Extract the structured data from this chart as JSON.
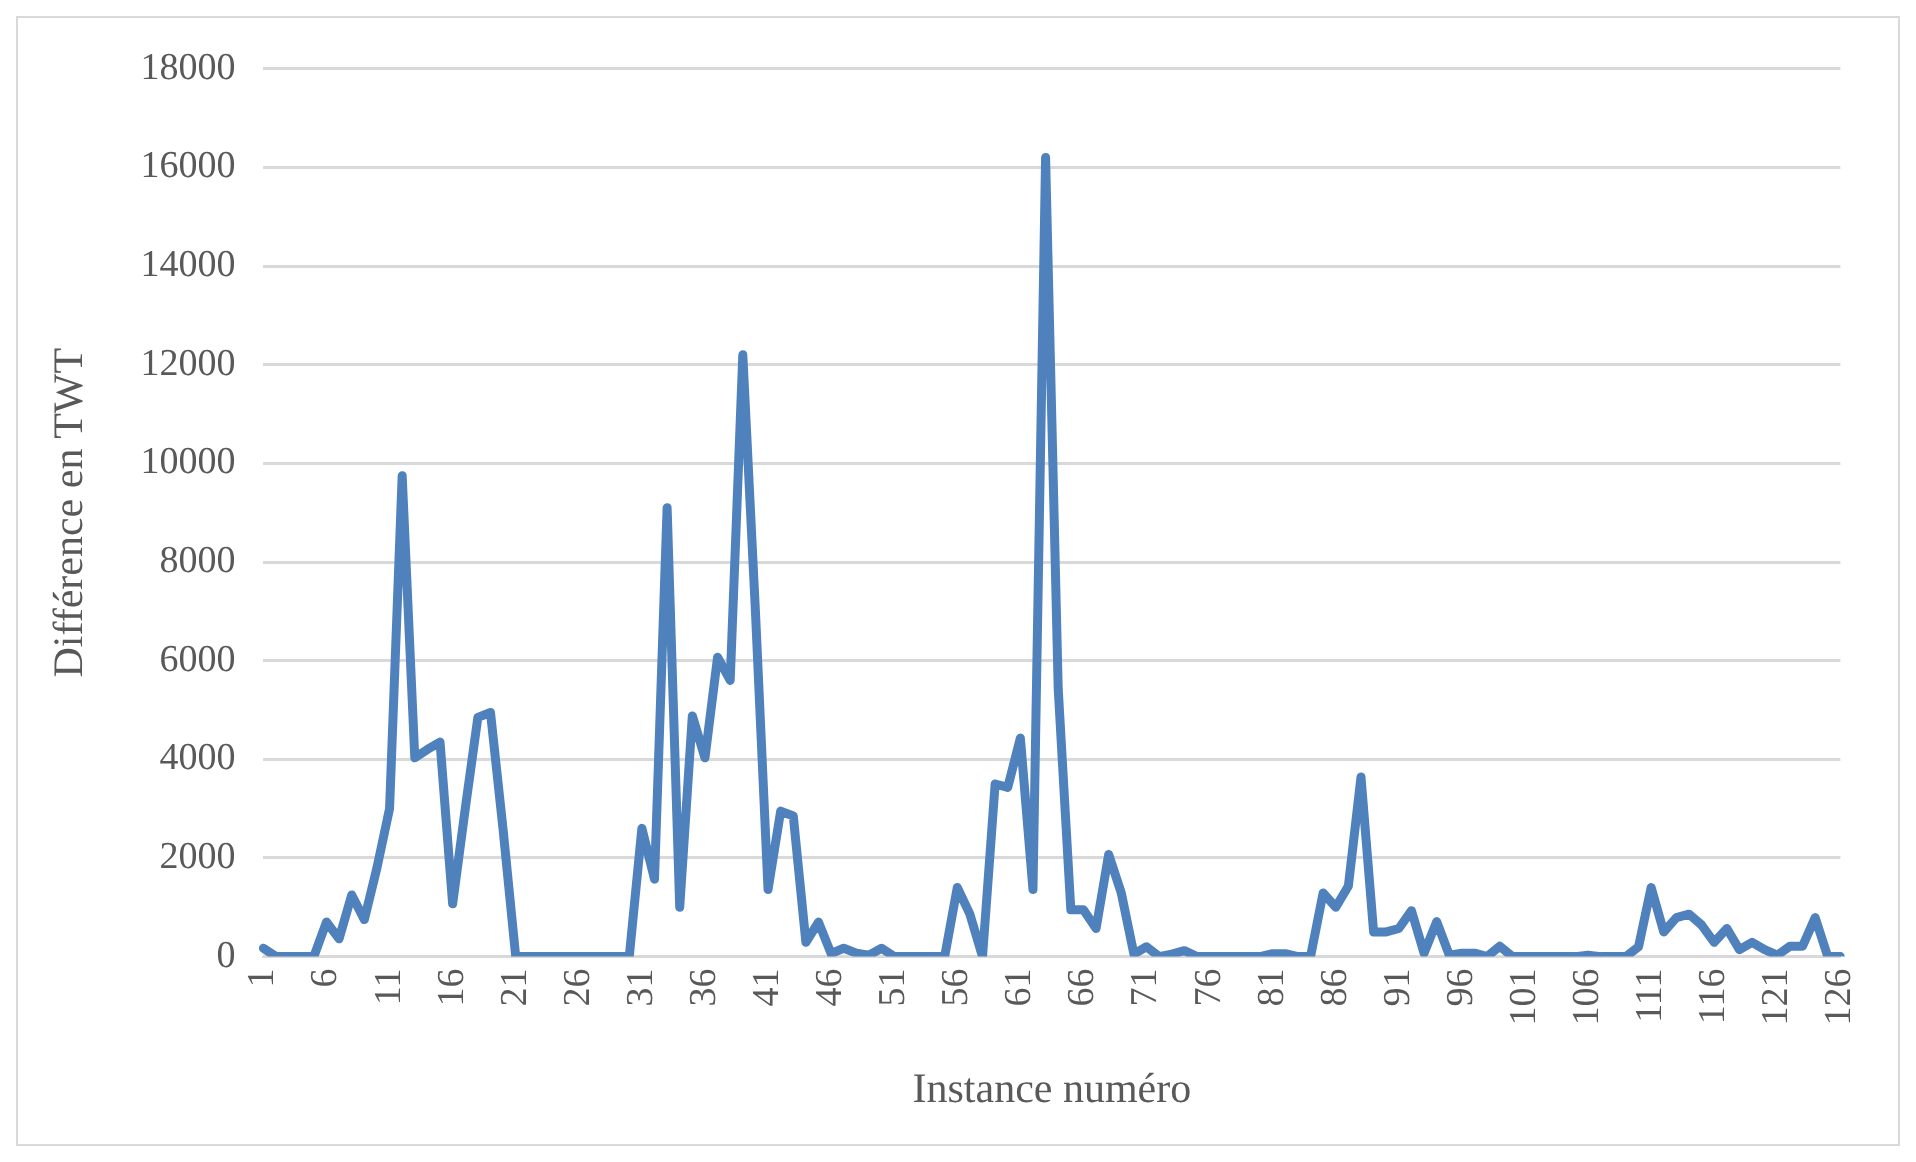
{
  "chart_data": {
    "type": "line",
    "xlabel": "Instance numéro",
    "ylabel": "Différence en TWT",
    "categories": [
      "1",
      null,
      null,
      null,
      null,
      "6",
      null,
      null,
      null,
      null,
      "11",
      null,
      null,
      null,
      null,
      "16",
      null,
      null,
      null,
      null,
      "21",
      null,
      null,
      null,
      null,
      "26",
      null,
      null,
      null,
      null,
      "31",
      null,
      null,
      null,
      null,
      "36",
      null,
      null,
      null,
      null,
      "41",
      null,
      null,
      null,
      null,
      "46",
      null,
      null,
      null,
      null,
      "51",
      null,
      null,
      null,
      null,
      "56",
      null,
      null,
      null,
      null,
      "61",
      null,
      null,
      null,
      null,
      "66",
      null,
      null,
      null,
      null,
      "71",
      null,
      null,
      null,
      null,
      "76",
      null,
      null,
      null,
      null,
      "81",
      null,
      null,
      null,
      null,
      "86",
      null,
      null,
      null,
      null,
      "91",
      null,
      null,
      null,
      null,
      "96",
      null,
      null,
      null,
      null,
      "101",
      null,
      null,
      null,
      null,
      "106",
      null,
      null,
      null,
      null,
      "111",
      null,
      null,
      null,
      null,
      "116",
      null,
      null,
      null,
      null,
      "121",
      null,
      null,
      null,
      null,
      "126"
    ],
    "series": [
      {
        "color": "#4f81bd",
        "values": [
          170,
          0,
          0,
          0,
          0,
          700,
          360,
          1250,
          750,
          1800,
          3000,
          9750,
          4030,
          4200,
          4350,
          1070,
          3000,
          4850,
          4950,
          2570,
          0,
          0,
          0,
          0,
          0,
          0,
          0,
          0,
          0,
          0,
          2600,
          1570,
          9100,
          1000,
          4880,
          4030,
          6070,
          5600,
          12200,
          7000,
          1360,
          2950,
          2850,
          290,
          700,
          60,
          170,
          70,
          30,
          170,
          0,
          0,
          0,
          0,
          0,
          1400,
          860,
          0,
          3500,
          3430,
          4430,
          1360,
          16200,
          5430,
          950,
          950,
          570,
          2070,
          1290,
          50,
          200,
          0,
          50,
          120,
          0,
          0,
          0,
          0,
          0,
          0,
          60,
          60,
          0,
          0,
          1290,
          1000,
          1430,
          3640,
          500,
          500,
          570,
          930,
          70,
          710,
          30,
          70,
          70,
          0,
          210,
          0,
          0,
          0,
          0,
          0,
          0,
          30,
          0,
          0,
          0,
          200,
          1400,
          500,
          790,
          860,
          640,
          290,
          570,
          140,
          290,
          140,
          30,
          210,
          210,
          790,
          0,
          0
        ]
      }
    ],
    "ylim": [
      0,
      18000
    ],
    "yticks": [
      0,
      2000,
      4000,
      6000,
      8000,
      10000,
      12000,
      14000,
      16000,
      18000
    ],
    "grid": "y",
    "legend": false,
    "marker": "none",
    "line_style": "solid"
  }
}
